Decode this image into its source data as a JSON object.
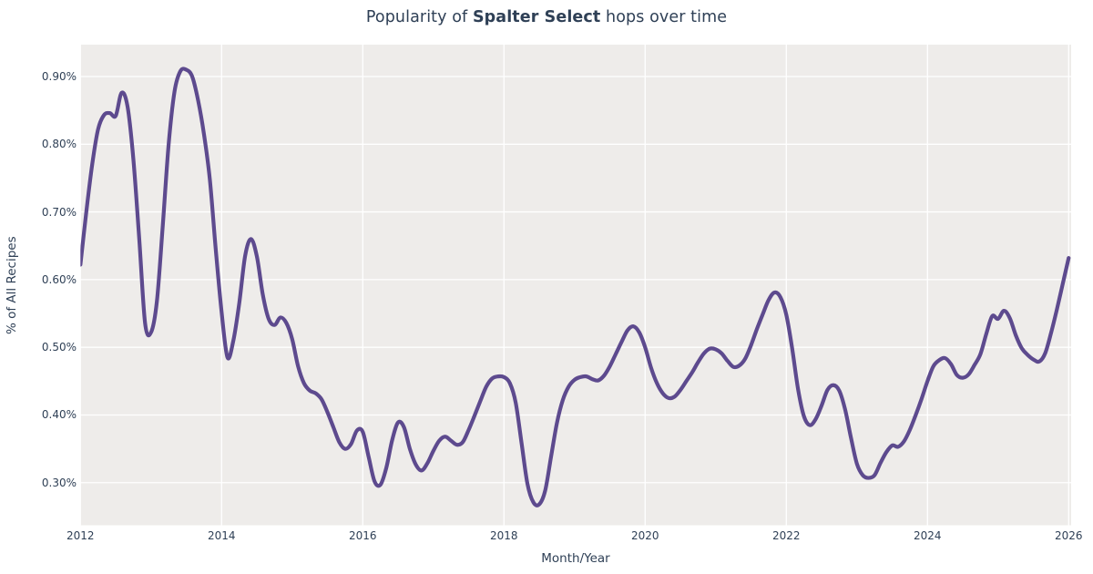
{
  "figure": {
    "title": {
      "prefix": "Popularity of ",
      "emphasis": "Spalter Select",
      "suffix": " hops over time"
    }
  },
  "chart_data": {
    "type": "line",
    "title": "Popularity of Spalter Select hops over time",
    "xlabel": "Month/Year",
    "ylabel": "% of All Recipes",
    "legend_position": "none",
    "grid": true,
    "plot_background": "#eeecea",
    "gridline_color": "#ffffff",
    "text_color": "#2f4056",
    "xlim": [
      2012,
      2026.035
    ],
    "ylim": [
      0.2371,
      0.9471
    ],
    "x_ticks": [
      {
        "label": "2012",
        "value": 2012
      },
      {
        "label": "2014",
        "value": 2014
      },
      {
        "label": "2016",
        "value": 2016
      },
      {
        "label": "2018",
        "value": 2018
      },
      {
        "label": "2020",
        "value": 2020
      },
      {
        "label": "2022",
        "value": 2022
      },
      {
        "label": "2024",
        "value": 2024
      },
      {
        "label": "2026",
        "value": 2026
      }
    ],
    "y_ticks": [
      {
        "label": "0.30%",
        "value": 0.3
      },
      {
        "label": "0.40%",
        "value": 0.4
      },
      {
        "label": "0.50%",
        "value": 0.5
      },
      {
        "label": "0.60%",
        "value": 0.6
      },
      {
        "label": "0.70%",
        "value": 0.7
      },
      {
        "label": "0.80%",
        "value": 0.8
      },
      {
        "label": "0.90%",
        "value": 0.9
      }
    ],
    "series": [
      {
        "name": "Spalter Select",
        "color": "#5d4a8e",
        "line_width": 4.2,
        "unit": "% of all recipes",
        "x_start_year": 2012,
        "x_points_per_year": 12,
        "values": [
          0.622,
          0.7,
          0.77,
          0.822,
          0.843,
          0.846,
          0.842,
          0.876,
          0.856,
          0.778,
          0.66,
          0.535,
          0.522,
          0.568,
          0.68,
          0.8,
          0.878,
          0.908,
          0.91,
          0.9,
          0.865,
          0.815,
          0.748,
          0.645,
          0.552,
          0.485,
          0.51,
          0.565,
          0.635,
          0.66,
          0.634,
          0.578,
          0.542,
          0.533,
          0.544,
          0.536,
          0.512,
          0.472,
          0.447,
          0.436,
          0.432,
          0.423,
          0.404,
          0.382,
          0.36,
          0.35,
          0.357,
          0.377,
          0.375,
          0.338,
          0.302,
          0.297,
          0.322,
          0.363,
          0.389,
          0.382,
          0.35,
          0.327,
          0.318,
          0.329,
          0.347,
          0.362,
          0.368,
          0.362,
          0.356,
          0.36,
          0.378,
          0.399,
          0.421,
          0.442,
          0.454,
          0.457,
          0.456,
          0.447,
          0.418,
          0.358,
          0.298,
          0.271,
          0.268,
          0.288,
          0.338,
          0.388,
          0.422,
          0.442,
          0.452,
          0.456,
          0.457,
          0.453,
          0.451,
          0.458,
          0.472,
          0.49,
          0.508,
          0.525,
          0.531,
          0.522,
          0.5,
          0.47,
          0.447,
          0.432,
          0.425,
          0.427,
          0.437,
          0.45,
          0.463,
          0.478,
          0.491,
          0.498,
          0.497,
          0.491,
          0.48,
          0.471,
          0.473,
          0.483,
          0.503,
          0.527,
          0.549,
          0.57,
          0.581,
          0.574,
          0.548,
          0.498,
          0.438,
          0.398,
          0.385,
          0.394,
          0.414,
          0.437,
          0.444,
          0.436,
          0.408,
          0.366,
          0.328,
          0.311,
          0.307,
          0.311,
          0.329,
          0.345,
          0.355,
          0.353,
          0.361,
          0.378,
          0.4,
          0.424,
          0.45,
          0.472,
          0.481,
          0.484,
          0.475,
          0.459,
          0.455,
          0.46,
          0.474,
          0.49,
          0.52,
          0.546,
          0.542,
          0.554,
          0.543,
          0.518,
          0.499,
          0.489,
          0.482,
          0.479,
          0.491,
          0.521,
          0.556,
          0.594,
          0.632
        ]
      }
    ]
  }
}
